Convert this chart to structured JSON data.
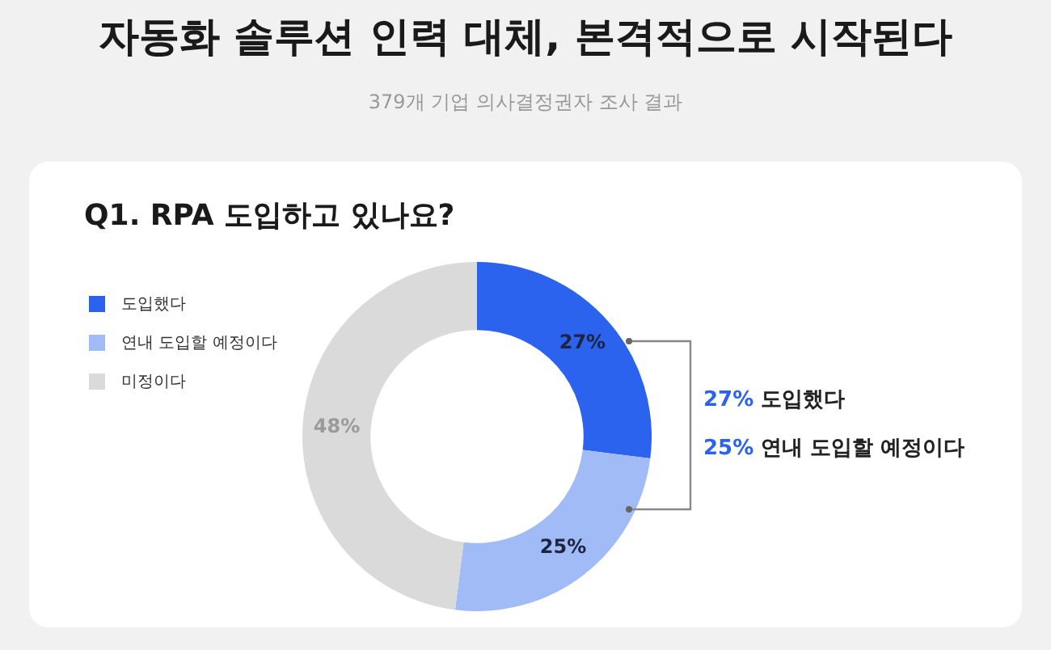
{
  "chart_data": {
    "type": "donut",
    "title": "자동화 솔루션 인력 대체, 본격적으로 시작된다",
    "subtitle": "379개 기업 의사결정권자 조사 결과",
    "annotations": [
      "Q1. RPA 도입하고 있나요?",
      "27% 도입했다",
      "25% 연내 도입할 예정이다"
    ],
    "categories": [
      "도입했다",
      "연내 도입할 예정이다",
      "미정이다"
    ],
    "values": [
      27,
      25,
      48
    ],
    "colors": [
      "#2b63ef",
      "#a0bbf5",
      "#dadada"
    ],
    "value_labels": [
      "27%",
      "25%",
      "48%"
    ],
    "legend": "top left"
  }
}
